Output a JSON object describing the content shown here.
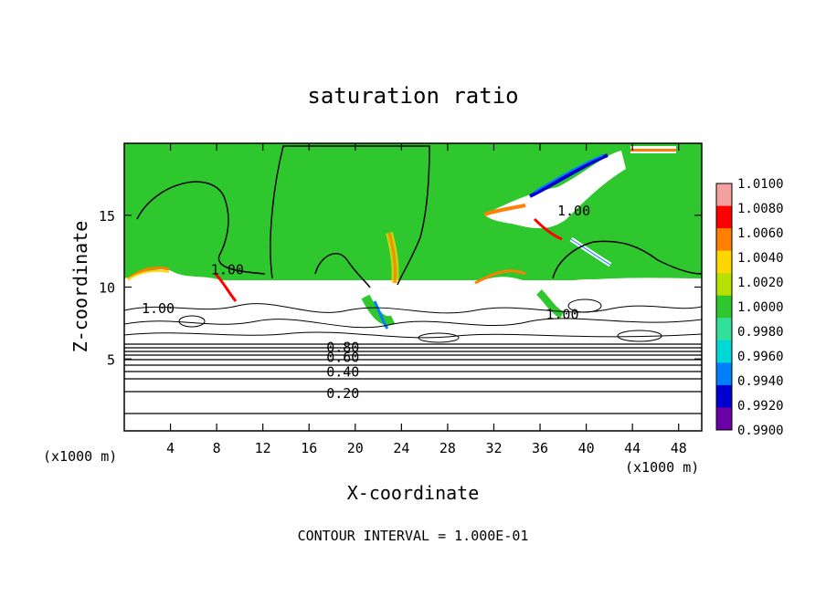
{
  "chart_data": {
    "type": "heatmap",
    "title": "saturation ratio",
    "xlabel": "X-coordinate",
    "ylabel": "Z-coordinate",
    "x_unit": "(x1000 m)",
    "y_unit": "(x1000 m)",
    "xlim": [
      0,
      50
    ],
    "ylim": [
      0,
      20
    ],
    "x_ticks": [
      4,
      8,
      12,
      16,
      20,
      24,
      28,
      32,
      36,
      40,
      44,
      48
    ],
    "y_ticks": [
      5,
      10,
      15
    ],
    "colorbar": {
      "levels": [
        "1.0100",
        "1.0080",
        "1.0060",
        "1.0040",
        "1.0020",
        "1.0000",
        "0.9980",
        "0.9960",
        "0.9940",
        "0.9920",
        "0.9900"
      ],
      "colors": [
        "#f4a0a0",
        "#ff0000",
        "#ff7f00",
        "#ffd700",
        "#b6e000",
        "#2ec82e",
        "#33e099",
        "#00d8d8",
        "#0080ff",
        "#0000d0",
        "#6a00a8"
      ]
    },
    "contour_labels": [
      {
        "text": "1.00",
        "x": 7.5,
        "z": 11.2
      },
      {
        "text": "1.00",
        "x": 1.5,
        "z": 8.5
      },
      {
        "text": "1.00",
        "x": 37.5,
        "z": 15.3
      },
      {
        "text": "1.00",
        "x": 36.5,
        "z": 8.1
      },
      {
        "text": "0.80",
        "x": 17.5,
        "z": 5.8
      },
      {
        "text": "0.60",
        "x": 17.5,
        "z": 5.1
      },
      {
        "text": "0.40",
        "x": 17.5,
        "z": 4.1
      },
      {
        "text": "0.20",
        "x": 17.5,
        "z": 2.6
      }
    ],
    "footer": "CONTOUR INTERVAL = 1.000E-01"
  }
}
